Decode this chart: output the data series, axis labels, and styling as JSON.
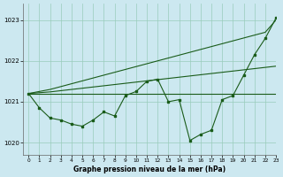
{
  "title": "Graphe pression niveau de la mer (hPa)",
  "bg_color": "#cce8f0",
  "grid_color": "#99ccbb",
  "line_color": "#1a5c1a",
  "xlim": [
    -0.5,
    23
  ],
  "ylim": [
    1019.7,
    1023.4
  ],
  "yticks": [
    1020,
    1021,
    1022,
    1023
  ],
  "xticks": [
    0,
    1,
    2,
    3,
    4,
    5,
    6,
    7,
    8,
    9,
    10,
    11,
    12,
    13,
    14,
    15,
    16,
    17,
    18,
    19,
    20,
    21,
    22,
    23
  ],
  "x": [
    0,
    1,
    2,
    3,
    4,
    5,
    6,
    7,
    8,
    9,
    10,
    11,
    12,
    13,
    14,
    15,
    16,
    17,
    18,
    19,
    20,
    21,
    22,
    23
  ],
  "zigzag": [
    1021.2,
    1020.85,
    1020.6,
    1020.55,
    1020.45,
    1020.4,
    1020.55,
    1020.75,
    1020.65,
    1021.15,
    1021.25,
    1021.5,
    1021.55,
    1021.0,
    1021.05,
    1020.05,
    1020.2,
    1020.3,
    1021.05,
    1021.15,
    1021.65,
    1022.15,
    1022.55,
    1023.05
  ],
  "flat_line": [
    1021.2,
    1021.2,
    1021.2,
    1021.2,
    1021.2,
    1021.2,
    1021.2,
    1021.2,
    1021.2,
    1021.2,
    1021.2,
    1021.2,
    1021.2,
    1021.2,
    1021.2,
    1021.2,
    1021.2,
    1021.2,
    1021.2,
    1021.2,
    1021.2,
    1021.2,
    1021.2,
    1021.2
  ],
  "gentle_slope": [
    1021.2,
    1021.22,
    1021.24,
    1021.27,
    1021.3,
    1021.33,
    1021.36,
    1021.39,
    1021.42,
    1021.45,
    1021.48,
    1021.51,
    1021.54,
    1021.57,
    1021.6,
    1021.63,
    1021.66,
    1021.69,
    1021.72,
    1021.75,
    1021.78,
    1021.81,
    1021.84,
    1021.87
  ],
  "steep_slope": [
    1021.2,
    1021.25,
    1021.3,
    1021.37,
    1021.44,
    1021.51,
    1021.58,
    1021.65,
    1021.72,
    1021.79,
    1021.86,
    1021.93,
    1022.0,
    1022.07,
    1022.14,
    1022.21,
    1022.28,
    1022.35,
    1022.42,
    1022.49,
    1022.56,
    1022.63,
    1022.7,
    1023.0
  ]
}
